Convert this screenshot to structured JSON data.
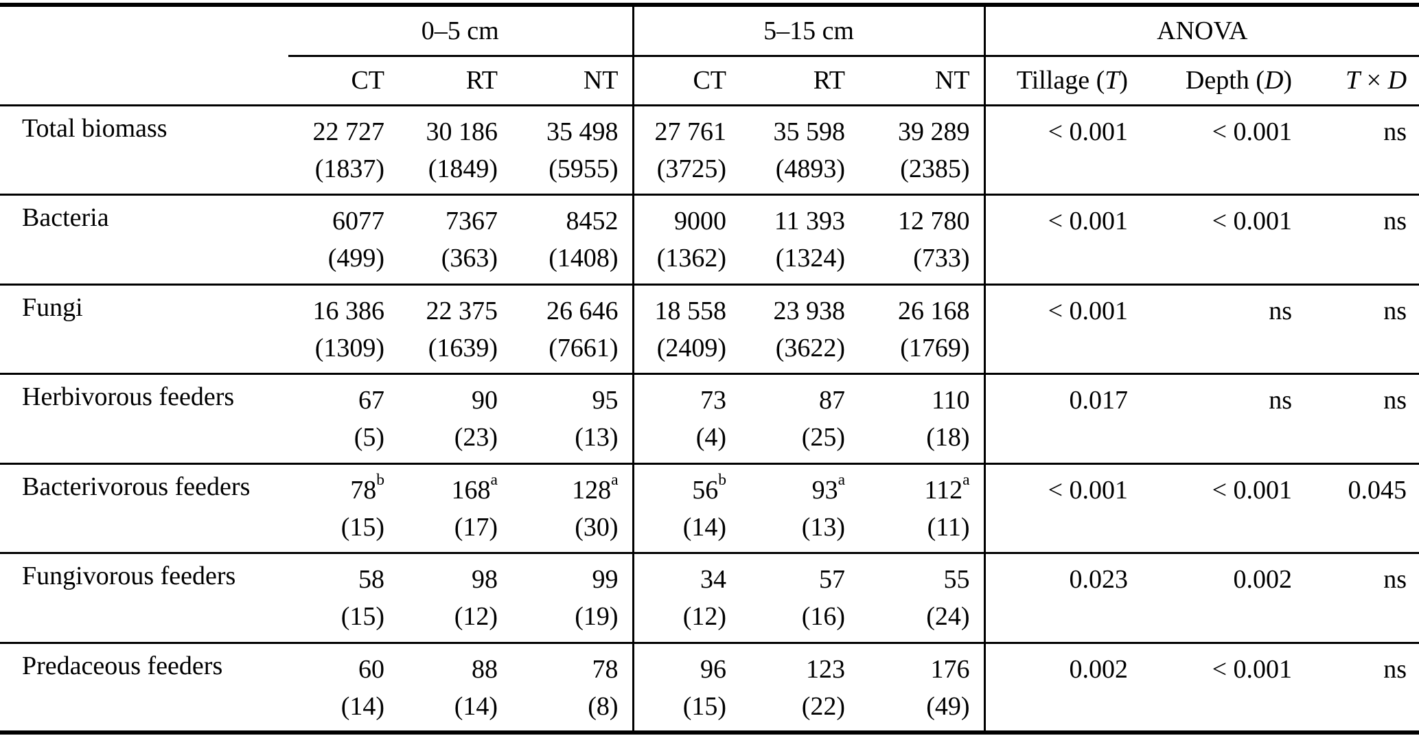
{
  "table": {
    "group_headers": {
      "depth1": "0–5 cm",
      "depth2": "5–15 cm",
      "anova": "ANOVA"
    },
    "col_headers": {
      "d1": [
        "CT",
        "RT",
        "NT"
      ],
      "d2": [
        "CT",
        "RT",
        "NT"
      ],
      "tillage": {
        "pre": "Tillage (",
        "it": "T",
        "post": ")"
      },
      "depth": {
        "pre": "Depth (",
        "it": "D",
        "post": ")"
      },
      "txd": {
        "it1": "T",
        "mid": " × ",
        "it2": "D"
      }
    },
    "rows": [
      {
        "label": "Total biomass",
        "cells": [
          {
            "v": "22 727",
            "se": "(1837)"
          },
          {
            "v": "30 186",
            "se": "(1849)"
          },
          {
            "v": "35 498",
            "se": "(5955)"
          },
          {
            "v": "27 761",
            "se": "(3725)"
          },
          {
            "v": "35 598",
            "se": "(4893)"
          },
          {
            "v": "39 289",
            "se": "(2385)"
          }
        ],
        "anova": [
          "< 0.001",
          "< 0.001",
          "ns"
        ]
      },
      {
        "label": "Bacteria",
        "cells": [
          {
            "v": "6077",
            "se": "(499)"
          },
          {
            "v": "7367",
            "se": "(363)"
          },
          {
            "v": "8452",
            "se": "(1408)"
          },
          {
            "v": "9000",
            "se": "(1362)"
          },
          {
            "v": "11 393",
            "se": "(1324)"
          },
          {
            "v": "12 780",
            "se": "(733)"
          }
        ],
        "anova": [
          "< 0.001",
          "< 0.001",
          "ns"
        ]
      },
      {
        "label": "Fungi",
        "cells": [
          {
            "v": "16 386",
            "se": "(1309)"
          },
          {
            "v": "22 375",
            "se": "(1639)"
          },
          {
            "v": "26 646",
            "se": "(7661)"
          },
          {
            "v": "18 558",
            "se": "(2409)"
          },
          {
            "v": "23 938",
            "se": "(3622)"
          },
          {
            "v": "26 168",
            "se": "(1769)"
          }
        ],
        "anova": [
          "< 0.001",
          "ns",
          "ns"
        ]
      },
      {
        "label": "Herbivorous feeders",
        "cells": [
          {
            "v": "67",
            "se": "(5)"
          },
          {
            "v": "90",
            "se": "(23)"
          },
          {
            "v": "95",
            "se": "(13)"
          },
          {
            "v": "73",
            "se": "(4)"
          },
          {
            "v": "87",
            "se": "(25)"
          },
          {
            "v": "110",
            "se": "(18)"
          }
        ],
        "anova": [
          "0.017",
          "ns",
          "ns"
        ]
      },
      {
        "label": "Bacterivorous feeders",
        "cells": [
          {
            "v": "78",
            "sup": "b",
            "se": "(15)"
          },
          {
            "v": "168",
            "sup": "a",
            "se": "(17)"
          },
          {
            "v": "128",
            "sup": "a",
            "se": "(30)"
          },
          {
            "v": "56",
            "sup": "b",
            "se": "(14)"
          },
          {
            "v": "93",
            "sup": "a",
            "se": "(13)"
          },
          {
            "v": "112",
            "sup": "a",
            "se": "(11)"
          }
        ],
        "anova": [
          "< 0.001",
          "< 0.001",
          "0.045"
        ]
      },
      {
        "label": "Fungivorous feeders",
        "cells": [
          {
            "v": "58",
            "se": "(15)"
          },
          {
            "v": "98",
            "se": "(12)"
          },
          {
            "v": "99",
            "se": "(19)"
          },
          {
            "v": "34",
            "se": "(12)"
          },
          {
            "v": "57",
            "se": "(16)"
          },
          {
            "v": "55",
            "se": "(24)"
          }
        ],
        "anova": [
          "0.023",
          "0.002",
          "ns"
        ]
      },
      {
        "label": "Predaceous feeders",
        "cells": [
          {
            "v": "60",
            "se": "(14)"
          },
          {
            "v": "88",
            "se": "(14)"
          },
          {
            "v": "78",
            "se": "(8)"
          },
          {
            "v": "96",
            "se": "(15)"
          },
          {
            "v": "123",
            "se": "(22)"
          },
          {
            "v": "176",
            "se": "(49)"
          }
        ],
        "anova": [
          "0.002",
          "< 0.001",
          "ns"
        ]
      }
    ]
  }
}
